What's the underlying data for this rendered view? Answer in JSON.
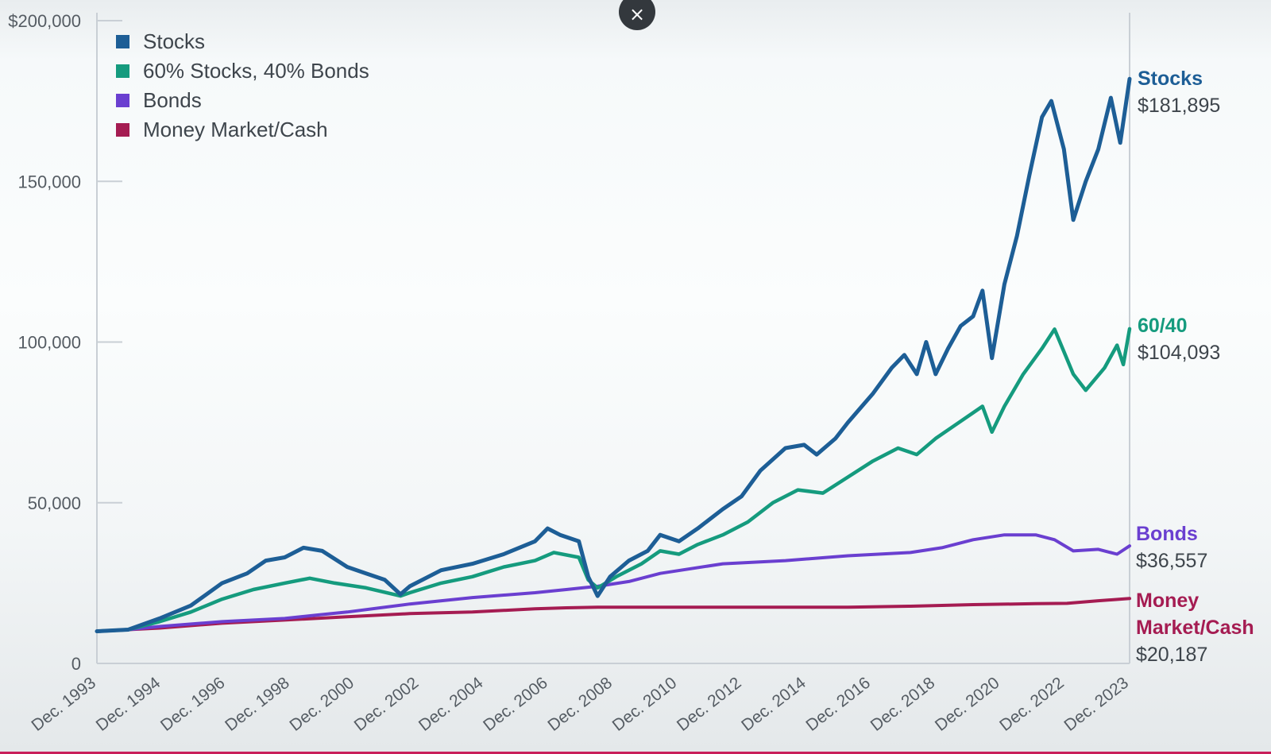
{
  "close_button": {
    "icon": "close-icon",
    "glyph": "×"
  },
  "colors": {
    "stocks": "#1d5e96",
    "sixty_forty": "#159b7e",
    "bonds": "#6a3fd0",
    "cash": "#a51c52",
    "axis": "#c9cfd5"
  },
  "chart_data": {
    "type": "line",
    "x_tick_labels": [
      "Dec. 1993",
      "Dec. 1994",
      "Dec. 1996",
      "Dec. 1998",
      "Dec. 2000",
      "Dec. 2002",
      "Dec. 2004",
      "Dec. 2006",
      "Dec. 2008",
      "Dec. 2010",
      "Dec. 2012",
      "Dec. 2014",
      "Dec. 2016",
      "Dec. 2018",
      "Dec. 2020",
      "Dec. 2022",
      "Dec. 2023"
    ],
    "y_tick_labels": [
      "$200,000",
      "150,000",
      "100,000",
      "50,000",
      "0"
    ],
    "y_ticks": [
      200000,
      150000,
      100000,
      50000,
      0
    ],
    "ylim": [
      0,
      200000
    ],
    "xlim": [
      0,
      16
    ],
    "legend": {
      "placement": "top-left",
      "items": [
        "Stocks",
        "60% Stocks, 40% Bonds",
        "Bonds",
        "Money Market/Cash"
      ]
    },
    "series": [
      {
        "key": "stocks",
        "name": "Stocks",
        "end_label": "Stocks",
        "end_value": "$181,895",
        "points": [
          [
            0,
            10000
          ],
          [
            0.5,
            10500
          ],
          [
            1,
            14000
          ],
          [
            1.5,
            18000
          ],
          [
            2,
            25000
          ],
          [
            2.4,
            28000
          ],
          [
            2.7,
            32000
          ],
          [
            3,
            33000
          ],
          [
            3.3,
            36000
          ],
          [
            3.6,
            35000
          ],
          [
            4,
            30000
          ],
          [
            4.3,
            28000
          ],
          [
            4.6,
            26000
          ],
          [
            4.85,
            21500
          ],
          [
            5,
            24000
          ],
          [
            5.5,
            29000
          ],
          [
            6,
            31000
          ],
          [
            6.5,
            34000
          ],
          [
            7,
            38000
          ],
          [
            7.2,
            42000
          ],
          [
            7.4,
            40000
          ],
          [
            7.7,
            38000
          ],
          [
            7.85,
            27000
          ],
          [
            8,
            21000
          ],
          [
            8.2,
            27000
          ],
          [
            8.5,
            32000
          ],
          [
            8.8,
            35000
          ],
          [
            9,
            40000
          ],
          [
            9.3,
            38000
          ],
          [
            9.6,
            42000
          ],
          [
            10,
            48000
          ],
          [
            10.3,
            52000
          ],
          [
            10.6,
            60000
          ],
          [
            11,
            67000
          ],
          [
            11.3,
            68000
          ],
          [
            11.5,
            65000
          ],
          [
            11.8,
            70000
          ],
          [
            12,
            75000
          ],
          [
            12.4,
            84000
          ],
          [
            12.7,
            92000
          ],
          [
            12.9,
            96000
          ],
          [
            13.1,
            90000
          ],
          [
            13.25,
            100000
          ],
          [
            13.4,
            90000
          ],
          [
            13.6,
            98000
          ],
          [
            13.8,
            105000
          ],
          [
            14,
            108000
          ],
          [
            14.15,
            116000
          ],
          [
            14.3,
            95000
          ],
          [
            14.5,
            118000
          ],
          [
            14.7,
            133000
          ],
          [
            14.9,
            152000
          ],
          [
            15.1,
            170000
          ],
          [
            15.25,
            175000
          ],
          [
            15.45,
            160000
          ],
          [
            15.6,
            138000
          ],
          [
            15.8,
            150000
          ],
          [
            16,
            160000
          ],
          [
            16.2,
            176000
          ],
          [
            16.35,
            162000
          ],
          [
            16.5,
            181895
          ]
        ]
      },
      {
        "key": "sixty_forty",
        "name": "60% Stocks, 40% Bonds",
        "end_label": "60/40",
        "end_value": "$104,093",
        "points": [
          [
            0,
            10000
          ],
          [
            0.5,
            10500
          ],
          [
            1,
            13000
          ],
          [
            1.5,
            16000
          ],
          [
            2,
            20000
          ],
          [
            2.5,
            23000
          ],
          [
            3,
            25000
          ],
          [
            3.4,
            26500
          ],
          [
            3.8,
            25000
          ],
          [
            4.3,
            23500
          ],
          [
            4.85,
            21000
          ],
          [
            5,
            22000
          ],
          [
            5.5,
            25000
          ],
          [
            6,
            27000
          ],
          [
            6.5,
            30000
          ],
          [
            7,
            32000
          ],
          [
            7.3,
            34500
          ],
          [
            7.7,
            33000
          ],
          [
            7.85,
            26000
          ],
          [
            8,
            23500
          ],
          [
            8.3,
            27000
          ],
          [
            8.7,
            31000
          ],
          [
            9,
            35000
          ],
          [
            9.3,
            34000
          ],
          [
            9.6,
            37000
          ],
          [
            10,
            40000
          ],
          [
            10.4,
            44000
          ],
          [
            10.8,
            50000
          ],
          [
            11.2,
            54000
          ],
          [
            11.6,
            53000
          ],
          [
            12,
            58000
          ],
          [
            12.4,
            63000
          ],
          [
            12.8,
            67000
          ],
          [
            13.1,
            65000
          ],
          [
            13.4,
            70000
          ],
          [
            13.7,
            74000
          ],
          [
            14,
            78000
          ],
          [
            14.15,
            80000
          ],
          [
            14.3,
            72000
          ],
          [
            14.5,
            80000
          ],
          [
            14.8,
            90000
          ],
          [
            15.1,
            98000
          ],
          [
            15.3,
            104000
          ],
          [
            15.6,
            90000
          ],
          [
            15.8,
            85000
          ],
          [
            16.1,
            92000
          ],
          [
            16.3,
            99000
          ],
          [
            16.4,
            93000
          ],
          [
            16.5,
            104093
          ]
        ]
      },
      {
        "key": "bonds",
        "name": "Bonds",
        "end_label": "Bonds",
        "end_value": "$36,557",
        "points": [
          [
            0,
            10000
          ],
          [
            0.5,
            10500
          ],
          [
            1,
            11500
          ],
          [
            2,
            13000
          ],
          [
            3,
            14000
          ],
          [
            3.5,
            15000
          ],
          [
            4,
            16000
          ],
          [
            5,
            18500
          ],
          [
            6,
            20500
          ],
          [
            7,
            22000
          ],
          [
            7.5,
            23000
          ],
          [
            8,
            24000
          ],
          [
            8.5,
            25500
          ],
          [
            9,
            28000
          ],
          [
            10,
            31000
          ],
          [
            11,
            32000
          ],
          [
            12,
            33500
          ],
          [
            13,
            34500
          ],
          [
            13.5,
            36000
          ],
          [
            14,
            38500
          ],
          [
            14.5,
            40000
          ],
          [
            15,
            40000
          ],
          [
            15.3,
            38500
          ],
          [
            15.6,
            35000
          ],
          [
            16,
            35500
          ],
          [
            16.3,
            34000
          ],
          [
            16.5,
            36557
          ]
        ]
      },
      {
        "key": "cash",
        "name": "Money Market/Cash",
        "end_label_lines": [
          "Money",
          "Market/Cash"
        ],
        "end_value": "$20,187",
        "points": [
          [
            0,
            10000
          ],
          [
            1,
            11000
          ],
          [
            2,
            12500
          ],
          [
            3,
            13500
          ],
          [
            4,
            14500
          ],
          [
            5,
            15500
          ],
          [
            6,
            16000
          ],
          [
            7,
            17000
          ],
          [
            7.5,
            17300
          ],
          [
            8,
            17500
          ],
          [
            9,
            17500
          ],
          [
            10,
            17500
          ],
          [
            11,
            17500
          ],
          [
            12,
            17500
          ],
          [
            13,
            17800
          ],
          [
            14,
            18300
          ],
          [
            15,
            18600
          ],
          [
            15.5,
            18700
          ],
          [
            16,
            19500
          ],
          [
            16.5,
            20187
          ]
        ]
      }
    ]
  }
}
